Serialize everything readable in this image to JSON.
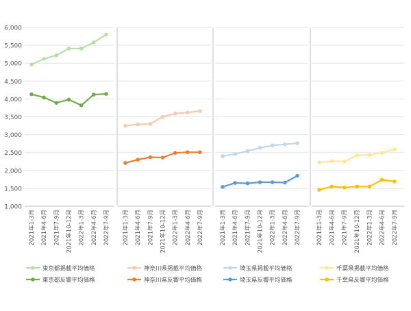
{
  "chart_data": {
    "type": "line",
    "ylim": [
      1000,
      6000
    ],
    "y_ticks": [
      1000,
      1500,
      2000,
      2500,
      3000,
      3500,
      4000,
      4500,
      5000,
      5500,
      6000
    ],
    "y_tick_labels": [
      "1,000",
      "1,500",
      "2,000",
      "2,500",
      "3,000",
      "3,500",
      "4,000",
      "4,500",
      "5,000",
      "5,500",
      "6,000"
    ],
    "grid": true,
    "legend_position": "bottom",
    "categories": [
      "2021年1-3月",
      "2021年4-6月",
      "2021年7-9月",
      "2021年10-12月",
      "2022年1-3月",
      "2022年4-6月",
      "2022年7-9月"
    ],
    "panels": [
      {
        "series": [
          {
            "name": "東京都掲載平均価格",
            "color": "#b6dfa6",
            "values": [
              4960,
              5120,
              5220,
              5410,
              5410,
              5580,
              5800
            ]
          },
          {
            "name": "東京都反響平均価格",
            "color": "#70ad47",
            "values": [
              4130,
              4040,
              3890,
              3980,
              3820,
              4120,
              4140
            ]
          }
        ]
      },
      {
        "series": [
          {
            "name": "神奈川県掲載平均価格",
            "color": "#f7caac",
            "values": [
              3250,
              3290,
              3300,
              3500,
              3590,
              3620,
              3660
            ]
          },
          {
            "name": "神奈川県反響平均価格",
            "color": "#ed7d31",
            "values": [
              2210,
              2300,
              2370,
              2360,
              2490,
              2510,
              2510
            ]
          }
        ]
      },
      {
        "series": [
          {
            "name": "埼玉県掲載平均価格",
            "color": "#bdd7ee",
            "values": [
              2400,
              2460,
              2540,
              2630,
              2700,
              2730,
              2760
            ]
          },
          {
            "name": "埼玉県反響平均価格",
            "color": "#5b9bd5",
            "values": [
              1540,
              1650,
              1640,
              1670,
              1670,
              1660,
              1850
            ]
          }
        ]
      },
      {
        "series": [
          {
            "name": "千葉県掲載平均価格",
            "color": "#ffe699",
            "values": [
              2220,
              2260,
              2250,
              2420,
              2430,
              2490,
              2590
            ]
          },
          {
            "name": "千葉県反響平均価格",
            "color": "#ffc000",
            "values": [
              1460,
              1550,
              1520,
              1550,
              1550,
              1740,
              1690
            ]
          }
        ]
      }
    ]
  }
}
